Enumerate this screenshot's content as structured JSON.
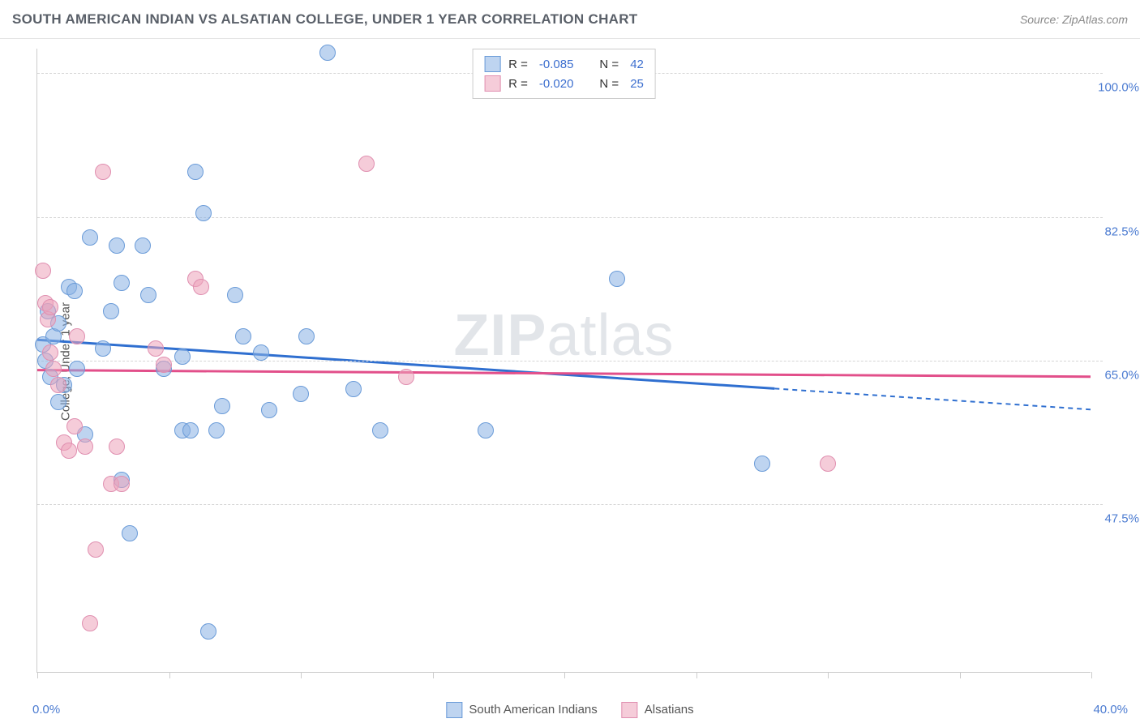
{
  "title": "SOUTH AMERICAN INDIAN VS ALSATIAN COLLEGE, UNDER 1 YEAR CORRELATION CHART",
  "source": "Source: ZipAtlas.com",
  "ylabel": "College, Under 1 year",
  "watermark_a": "ZIP",
  "watermark_b": "atlas",
  "chart": {
    "type": "scatter",
    "xlim": [
      0.0,
      40.0
    ],
    "ylim": [
      27.0,
      103.0
    ],
    "x_min_label": "0.0%",
    "x_max_label": "40.0%",
    "x_ticks": [
      0,
      5,
      10,
      15,
      20,
      25,
      30,
      35,
      40
    ],
    "y_gridlines": [
      47.5,
      65.0,
      82.5,
      100.0
    ],
    "y_tick_labels": [
      "47.5%",
      "65.0%",
      "82.5%",
      "100.0%"
    ],
    "background_color": "#ffffff",
    "grid_color": "#d5d5d5"
  },
  "series": [
    {
      "name": "South American Indians",
      "fill": "rgba(137,176,227,0.55)",
      "stroke": "#6a9bd8",
      "line_color": "#2f6fd0",
      "r_label": "R =",
      "r_value": "-0.085",
      "n_label": "N =",
      "n_value": "42",
      "regression": {
        "y_at_xmin": 67.5,
        "y_at_xmax": 59.0,
        "solid_until_x": 28.0
      },
      "points": [
        [
          0.2,
          67.0
        ],
        [
          0.3,
          65.0
        ],
        [
          0.4,
          71.0
        ],
        [
          0.5,
          63.0
        ],
        [
          0.6,
          68.0
        ],
        [
          0.8,
          69.5
        ],
        [
          0.8,
          60.0
        ],
        [
          1.0,
          62.0
        ],
        [
          1.2,
          74.0
        ],
        [
          1.4,
          73.5
        ],
        [
          1.5,
          64.0
        ],
        [
          1.8,
          56.0
        ],
        [
          2.0,
          80.0
        ],
        [
          2.5,
          66.5
        ],
        [
          2.8,
          71.0
        ],
        [
          3.0,
          79.0
        ],
        [
          3.2,
          74.5
        ],
        [
          3.2,
          50.5
        ],
        [
          3.5,
          44.0
        ],
        [
          4.0,
          79.0
        ],
        [
          4.2,
          73.0
        ],
        [
          4.8,
          64.0
        ],
        [
          5.5,
          56.5
        ],
        [
          5.5,
          65.5
        ],
        [
          5.8,
          56.5
        ],
        [
          6.0,
          88.0
        ],
        [
          6.3,
          83.0
        ],
        [
          6.5,
          32.0
        ],
        [
          6.8,
          56.5
        ],
        [
          7.0,
          59.5
        ],
        [
          7.5,
          73.0
        ],
        [
          7.8,
          68.0
        ],
        [
          8.5,
          66.0
        ],
        [
          8.8,
          59.0
        ],
        [
          10.0,
          61.0
        ],
        [
          10.2,
          68.0
        ],
        [
          11.0,
          102.5
        ],
        [
          12.0,
          61.5
        ],
        [
          13.0,
          56.5
        ],
        [
          17.0,
          56.5
        ],
        [
          22.0,
          75.0
        ],
        [
          27.5,
          52.5
        ]
      ]
    },
    {
      "name": "Alsatians",
      "fill": "rgba(236,163,186,0.55)",
      "stroke": "#e08fb0",
      "line_color": "#e24f8a",
      "r_label": "R =",
      "r_value": "-0.020",
      "n_label": "N =",
      "n_value": "25",
      "regression": {
        "y_at_xmin": 63.8,
        "y_at_xmax": 63.0,
        "solid_until_x": 40.0
      },
      "points": [
        [
          0.2,
          76.0
        ],
        [
          0.3,
          72.0
        ],
        [
          0.4,
          70.0
        ],
        [
          0.5,
          71.5
        ],
        [
          0.5,
          66.0
        ],
        [
          0.6,
          64.0
        ],
        [
          0.8,
          62.0
        ],
        [
          1.0,
          55.0
        ],
        [
          1.2,
          54.0
        ],
        [
          1.4,
          57.0
        ],
        [
          1.5,
          68.0
        ],
        [
          1.8,
          54.5
        ],
        [
          2.0,
          33.0
        ],
        [
          2.2,
          42.0
        ],
        [
          2.5,
          88.0
        ],
        [
          2.8,
          50.0
        ],
        [
          3.0,
          54.5
        ],
        [
          3.2,
          50.0
        ],
        [
          4.5,
          66.5
        ],
        [
          4.8,
          64.5
        ],
        [
          6.0,
          75.0
        ],
        [
          6.2,
          74.0
        ],
        [
          12.5,
          89.0
        ],
        [
          14.0,
          63.0
        ],
        [
          30.0,
          52.5
        ]
      ]
    }
  ],
  "legend_bottom": [
    {
      "label": "South American Indians"
    },
    {
      "label": "Alsatians"
    }
  ]
}
